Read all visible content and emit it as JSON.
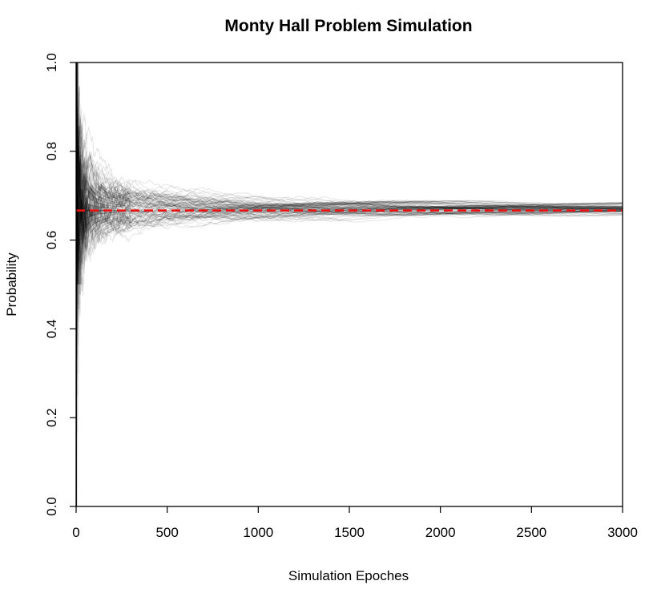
{
  "chart_data": {
    "type": "line",
    "title": "Monty Hall Problem Simulation",
    "xlabel": "Simulation Epoches",
    "ylabel": "Probability",
    "xlim": [
      0,
      3000
    ],
    "ylim": [
      0,
      1
    ],
    "xticks": [
      "0",
      "500",
      "1000",
      "1500",
      "2000",
      "2500",
      "3000"
    ],
    "yticks": [
      "0.0",
      "0.2",
      "0.4",
      "0.6",
      "0.8",
      "1.0"
    ],
    "grid": false,
    "simulation_runs": 100,
    "simulation_series_color": "#000000",
    "reference_line": {
      "y": 0.6667,
      "style": "dashed",
      "color": "#ee1111"
    }
  }
}
